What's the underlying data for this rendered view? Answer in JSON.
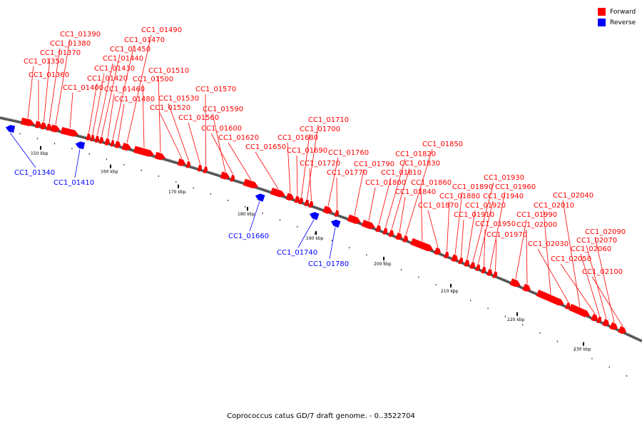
{
  "title": "Coprococcus catus GD/7 draft genome. - 0..3522704",
  "legend": {
    "forward_label": "Forward",
    "reverse_label": "Reverse",
    "forward_color": "#ff0000",
    "reverse_color": "#0000ff"
  },
  "axis": {
    "tick_labels": [
      "150 kbp",
      "160 kbp",
      "170 kbp",
      "180 kbp",
      "190 kbp",
      "200 kbp",
      "210 kbp",
      "220 kbp",
      "230 kbp"
    ]
  },
  "genes_forward": [
    "CC1_01350",
    "CC1_01360",
    "CC1_01370",
    "CC1_01380",
    "CC1_01390",
    "CC1_01400",
    "CC1_01420",
    "CC1_01430",
    "CC1_01440",
    "CC1_01450",
    "CC1_01460",
    "CC1_01470",
    "CC1_01480",
    "CC1_01490",
    "CC1_01500",
    "CC1_01510",
    "CC1_01520",
    "CC1_01530",
    "CC1_01560",
    "CC1_01570",
    "CC1_01590",
    "CC1_01600",
    "CC1_01620",
    "CC1_01650",
    "CC1_01680",
    "CC1_01690",
    "CC1_01700",
    "CC1_01710",
    "CC1_01720",
    "CC1_01760",
    "CC1_01770",
    "CC1_01790",
    "CC1_01800",
    "CC1_01810",
    "CC1_01820",
    "CC1_01830",
    "CC1_01840",
    "CC1_01850",
    "CC1_01860",
    "CC1_01870",
    "CC1_01880",
    "CC1_01890",
    "CC1_01910",
    "CC1_01920",
    "CC1_01930",
    "CC1_01940",
    "CC1_01950",
    "CC1_01960",
    "CC1_01970",
    "CC1_01990",
    "CC1_02000",
    "CC1_02010",
    "CC1_02030",
    "CC1_02040",
    "CC1_02050",
    "CC1_02060",
    "CC1_02070",
    "CC1_02090",
    "CC1_02100"
  ],
  "genes_reverse": [
    "CC1_01340",
    "CC1_01410",
    "CC1_01660",
    "CC1_01740",
    "CC1_01780"
  ]
}
